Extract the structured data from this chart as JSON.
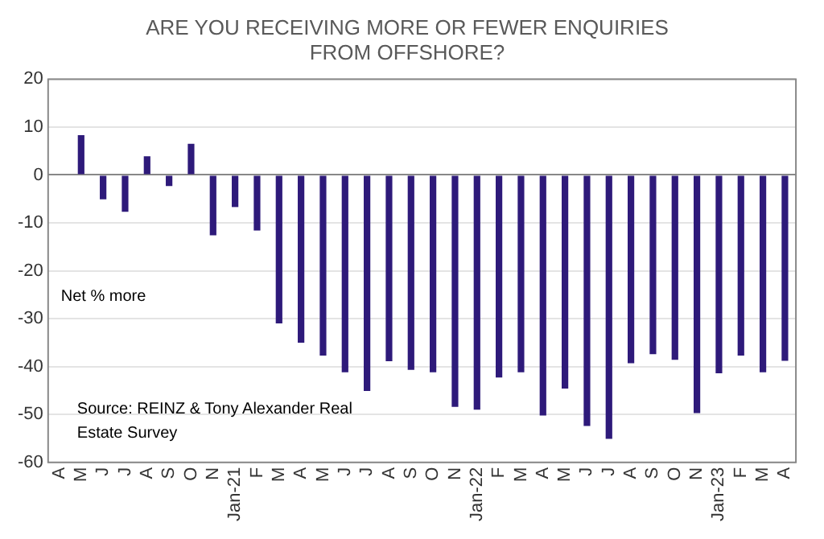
{
  "chart_data": {
    "type": "bar",
    "title": "ARE YOU RECEIVING MORE OR FEWER ENQUIRIES FROM OFFSHORE?",
    "categories": [
      "A",
      "M",
      "J",
      "J",
      "A",
      "S",
      "O",
      "N",
      "Jan-21",
      "F",
      "M",
      "A",
      "M",
      "J",
      "J",
      "A",
      "S",
      "O",
      "N",
      "Jan-22",
      "F",
      "M",
      "A",
      "M",
      "J",
      "J",
      "A",
      "S",
      "O",
      "N",
      "Jan-23",
      "F",
      "M",
      "A"
    ],
    "values": [
      null,
      8.3,
      -5.1,
      -7.7,
      3.9,
      -2.3,
      6.5,
      -12.6,
      -6.7,
      -11.6,
      -31,
      -35,
      -37.7,
      -41.2,
      -45.1,
      -38.9,
      -40.7,
      -41.2,
      -48.4,
      -49,
      -42.3,
      -41.2,
      -50.2,
      -44.6,
      -52.4,
      -55.1,
      -39.3,
      -37.4,
      -38.6,
      -49.7,
      -41.4,
      -37.7,
      -41.2,
      -38.8
    ],
    "color": "#2e1a7a",
    "ylim": [
      -60,
      20
    ],
    "yticks": [
      -60,
      -50,
      -40,
      -30,
      -20,
      -10,
      0,
      10,
      20
    ],
    "grid": "y",
    "legend": false,
    "annotations": [
      "Net % more",
      "Source: REINZ & Tony Alexander Real\nEstate Survey"
    ]
  }
}
